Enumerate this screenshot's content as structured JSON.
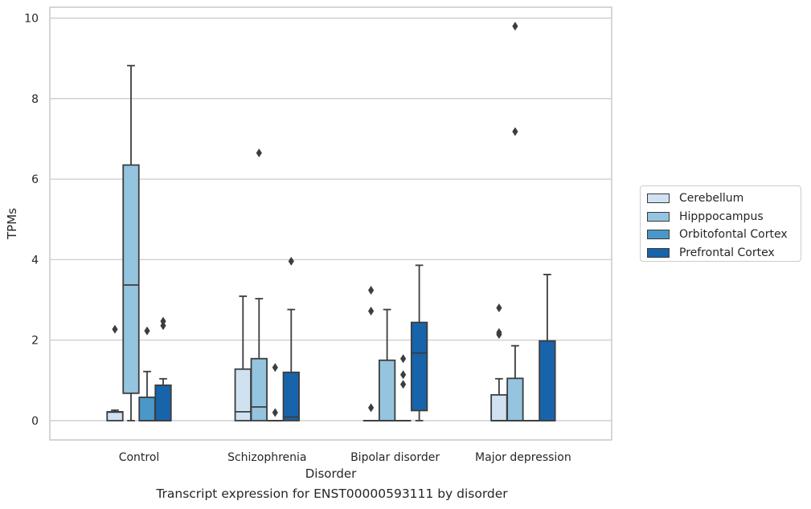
{
  "caption": "Transcript expression for ENST00000593111 by disorder",
  "chart_data": {
    "type": "box",
    "title": "",
    "xlabel": "Disorder",
    "ylabel": "TPMs",
    "categories": [
      "Control",
      "Schizophrenia",
      "Bipolar disorder",
      "Major depression"
    ],
    "ylim": [
      -0.48,
      10.27
    ],
    "yticks": [
      0,
      2,
      4,
      6,
      8,
      10
    ],
    "grid": true,
    "legend_position": "right",
    "series": [
      {
        "name": "Cerebellum",
        "color": "#d0e1f2",
        "boxes": [
          {
            "whisker_low": 0,
            "q1": 0,
            "median": 0.21,
            "q3": 0.22,
            "whisker_high": 0.26,
            "outliers": [
              2.27
            ]
          },
          {
            "whisker_low": 0,
            "q1": 0,
            "median": 0.22,
            "q3": 1.28,
            "whisker_high": 3.09,
            "outliers": []
          },
          {
            "whisker_low": 0,
            "q1": 0,
            "median": 0,
            "q3": 0,
            "whisker_high": 0,
            "outliers": [
              3.24,
              2.72,
              0.32
            ]
          },
          {
            "whisker_low": 0,
            "q1": 0,
            "median": 0,
            "q3": 0.64,
            "whisker_high": 1.04,
            "outliers": [
              2.8,
              2.19,
              2.14
            ]
          }
        ]
      },
      {
        "name": "Hipppocampus",
        "color": "#94c4df",
        "boxes": [
          {
            "whisker_low": 0,
            "q1": 0.68,
            "median": 3.37,
            "q3": 6.35,
            "whisker_high": 8.82,
            "outliers": []
          },
          {
            "whisker_low": 0,
            "q1": 0,
            "median": 0.34,
            "q3": 1.54,
            "whisker_high": 3.03,
            "outliers": [
              6.65
            ]
          },
          {
            "whisker_low": 0,
            "q1": 0,
            "median": 0,
            "q3": 1.5,
            "whisker_high": 2.76,
            "outliers": []
          },
          {
            "whisker_low": 0,
            "q1": 0,
            "median": 0,
            "q3": 1.05,
            "whisker_high": 1.86,
            "outliers": [
              9.8,
              7.18
            ]
          }
        ]
      },
      {
        "name": "Orbitofontal Cortex",
        "color": "#4a98c9",
        "boxes": [
          {
            "whisker_low": 0,
            "q1": 0,
            "median": 0,
            "q3": 0.58,
            "whisker_high": 1.22,
            "outliers": [
              2.23
            ]
          },
          {
            "whisker_low": 0,
            "q1": 0,
            "median": 0,
            "q3": 0,
            "whisker_high": 0,
            "outliers": [
              1.32,
              0.2
            ]
          },
          {
            "whisker_low": 0,
            "q1": 0,
            "median": 0,
            "q3": 0,
            "whisker_high": 0,
            "outliers": [
              1.54,
              1.14,
              0.9
            ]
          },
          {
            "whisker_low": 0,
            "q1": 0,
            "median": 0,
            "q3": 0,
            "whisker_high": 0,
            "outliers": []
          }
        ]
      },
      {
        "name": "Prefrontal Cortex",
        "color": "#1764ab",
        "boxes": [
          {
            "whisker_low": 0,
            "q1": 0,
            "median": 0,
            "q3": 0.88,
            "whisker_high": 1.04,
            "outliers": [
              2.47,
              2.36
            ]
          },
          {
            "whisker_low": 0,
            "q1": 0,
            "median": 0.09,
            "q3": 1.2,
            "whisker_high": 2.76,
            "outliers": [
              3.96
            ]
          },
          {
            "whisker_low": 0,
            "q1": 0.25,
            "median": 1.68,
            "q3": 2.44,
            "whisker_high": 3.86,
            "outliers": []
          },
          {
            "whisker_low": 0,
            "q1": 0,
            "median": 0,
            "q3": 1.98,
            "whisker_high": 3.63,
            "outliers": []
          }
        ]
      }
    ]
  }
}
